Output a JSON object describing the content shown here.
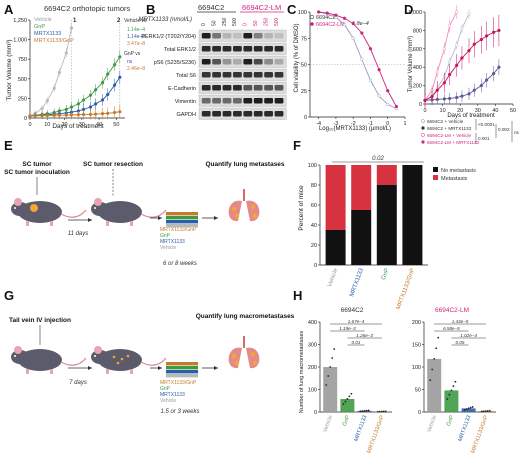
{
  "panel_letters": [
    "A",
    "B",
    "C",
    "D",
    "E",
    "F",
    "G",
    "H"
  ],
  "panel_a": {
    "title": "6694C2 orthotopic tumors",
    "ylabel": "Tumor Volume (mm³)",
    "xlabel": "Days of treatment",
    "legend": [
      "Vehicle",
      "GnP",
      "MRTX1133",
      "MRTX1133/GnP"
    ],
    "stats_head_1": "Vehicle vs",
    "stats_1": [
      "1.14e–4",
      "1.14e–8",
      "3.47e–8"
    ],
    "stats_head_2": "GnP vs",
    "stats_2": [
      "ns",
      "2.46e–8"
    ],
    "marker_1": "1",
    "marker_2": "2",
    "colors": {
      "vehicle": "#b9b9b9",
      "gnp": "#3f9a44",
      "mrtx": "#2a5ea8",
      "combo": "#c47a2c"
    }
  },
  "panel_b": {
    "cell_lines": [
      "6694C2",
      "6694C2-LM"
    ],
    "drug_label": "MRTX1133 (nmol/L)",
    "doses": [
      "0",
      "50",
      "250",
      "500",
      "0",
      "50",
      "250",
      "500"
    ],
    "rows": [
      "PERK1/2 (T202/Y204)",
      "Total ERK1/2",
      "pS6 (S235/S236)",
      "Total S6",
      "E-Cadherin",
      "Vimentin",
      "GAPDH"
    ]
  },
  "panel_c": {
    "legend": [
      "6694C2",
      "6694C2-LM"
    ],
    "pvalue": "1.8e–4",
    "ylabel": "Cell viability (% of DMSO)",
    "xlabel": "Log₁₀(MRTX1133) (μmol/L)"
  },
  "panel_d": {
    "ylabel": "Tumor Volume (mm³)",
    "xlabel": "Days of treatment",
    "legend": [
      "6694C2 + Vehicle",
      "6694C2 + MRTX1133",
      "6694C2-LM + Vehicle",
      "6694C2-LM + MRTX1133"
    ],
    "stats": [
      "<0.0001",
      "0.001",
      "0.002",
      "ns"
    ]
  },
  "panel_e": {
    "step1": "SC tumor inoculation",
    "step2": "SC tumor resection",
    "step3": "Quantify lung metastases",
    "interval": "11 days",
    "duration": "6 or 8 weeks",
    "treatments": [
      "MRTX1133/GnP",
      "GnP",
      "MRTX1133",
      "Vehicle"
    ]
  },
  "panel_f": {
    "ylabel": "Percent of mice",
    "legend": [
      "No metastasis",
      "Metastasis"
    ],
    "pvalue": "0.02",
    "categories": [
      "Vehicle",
      "MRTX1133",
      "GnP",
      "MRTX1133/GnP"
    ]
  },
  "panel_g": {
    "step1": "Tail vein IV injection",
    "step2": "Quantify lung macrometastases",
    "interval": "7 days",
    "duration": "1.5 or 3 weeks",
    "treatments": [
      "MRTX1133/GnP",
      "GnP",
      "MRTX1133",
      "Vehicle"
    ]
  },
  "panel_h": {
    "ylabel": "Number of lung macrometastases",
    "left": {
      "title": "6694C2",
      "pvalues": [
        "1.67e–4",
        "1.19e–3",
        "1.26e–3",
        "0.01"
      ]
    },
    "right": {
      "title": "6694C2-LM",
      "pvalues": [
        "1.43e–5",
        "6.58e–5",
        "1.02e–4",
        "0.05"
      ]
    },
    "categories": [
      "Vehicle",
      "GnP",
      "MRTX1133",
      "MRTX1133/GnP"
    ]
  },
  "chart_data": [
    {
      "type": "line",
      "panel": "A",
      "title": "6694C2 orthotopic tumors",
      "xlabel": "Days of treatment",
      "ylabel": "Tumor Volume (mm³)",
      "xlim": [
        0,
        55
      ],
      "ylim": [
        0,
        1250
      ],
      "x_ticks": [
        0,
        10,
        20,
        30,
        40,
        50
      ],
      "y_ticks": [
        0,
        250,
        500,
        750,
        1000,
        1250
      ],
      "series": [
        {
          "name": "Vehicle",
          "x": [
            0,
            3,
            7,
            10,
            14,
            17,
            21,
            24
          ],
          "values": [
            30,
            60,
            120,
            220,
            380,
            580,
            830,
            1150
          ]
        },
        {
          "name": "GnP",
          "x": [
            0,
            3,
            7,
            10,
            14,
            17,
            21,
            24,
            28,
            31,
            35,
            38,
            42,
            45,
            49,
            52
          ],
          "values": [
            25,
            35,
            45,
            55,
            70,
            90,
            110,
            140,
            180,
            230,
            290,
            360,
            450,
            560,
            680,
            780
          ]
        },
        {
          "name": "MRTX1133",
          "x": [
            0,
            3,
            7,
            10,
            14,
            17,
            21,
            24,
            28,
            31,
            35,
            38,
            42,
            45,
            49,
            52
          ],
          "values": [
            25,
            30,
            35,
            40,
            48,
            55,
            65,
            75,
            90,
            110,
            140,
            180,
            230,
            300,
            420,
            520
          ]
        },
        {
          "name": "MRTX1133/GnP",
          "x": [
            0,
            3,
            7,
            10,
            14,
            17,
            21,
            24,
            28,
            31,
            35,
            38,
            42,
            45,
            49,
            52
          ],
          "values": [
            25,
            28,
            30,
            32,
            34,
            36,
            38,
            40,
            42,
            44,
            46,
            50,
            55,
            60,
            70,
            80
          ]
        }
      ]
    },
    {
      "type": "line",
      "panel": "C",
      "xlabel": "Log₁₀(MRTX1133) (μmol/L)",
      "ylabel": "Cell viability (% of DMSO)",
      "xlim": [
        -4.5,
        1
      ],
      "ylim": [
        0,
        100
      ],
      "x_ticks": [
        -4,
        -3,
        -2,
        -1,
        0,
        1
      ],
      "y_ticks": [
        0,
        25,
        50,
        75,
        100
      ],
      "series": [
        {
          "name": "6694C2",
          "x": [
            -4,
            -3.5,
            -3,
            -2.5,
            -2,
            -1.5,
            -1,
            -0.5,
            0,
            0.5
          ],
          "values": [
            100,
            98,
            95,
            88,
            75,
            55,
            35,
            20,
            12,
            8
          ]
        },
        {
          "name": "6694C2-LM",
          "x": [
            -4,
            -3.5,
            -3,
            -2.5,
            -2,
            -1.5,
            -1,
            -0.5,
            0,
            0.5
          ],
          "values": [
            100,
            99,
            97,
            94,
            89,
            80,
            65,
            45,
            25,
            10
          ]
        }
      ]
    },
    {
      "type": "line",
      "panel": "D",
      "xlabel": "Days of treatment",
      "ylabel": "Tumor Volume (mm³)",
      "xlim": [
        0,
        50
      ],
      "ylim": [
        0,
        1000
      ],
      "x_ticks": [
        0,
        10,
        20,
        30,
        40,
        50
      ],
      "y_ticks": [
        0,
        200,
        400,
        600,
        800,
        1000
      ],
      "series": [
        {
          "name": "6694C2 + Vehicle",
          "x": [
            0,
            4,
            7,
            11,
            14,
            18,
            21,
            25
          ],
          "values": [
            40,
            90,
            170,
            300,
            460,
            640,
            820,
            980
          ]
        },
        {
          "name": "6694C2 + MRTX1133",
          "x": [
            0,
            4,
            7,
            11,
            14,
            18,
            21,
            25,
            28,
            32,
            35,
            39,
            42
          ],
          "values": [
            40,
            45,
            50,
            55,
            60,
            70,
            85,
            110,
            150,
            200,
            260,
            330,
            400
          ]
        },
        {
          "name": "6694C2-LM + Vehicle",
          "x": [
            0,
            4,
            7,
            11,
            14,
            18
          ],
          "values": [
            40,
            150,
            350,
            600,
            850,
            1000
          ]
        },
        {
          "name": "6694C2-LM + MRTX1133",
          "x": [
            0,
            4,
            7,
            11,
            14,
            18,
            21,
            25,
            28,
            32,
            35,
            39,
            42
          ],
          "values": [
            40,
            80,
            150,
            230,
            320,
            420,
            500,
            580,
            650,
            700,
            740,
            780,
            800
          ]
        }
      ]
    },
    {
      "type": "bar",
      "panel": "F",
      "ylabel": "Percent of mice",
      "categories": [
        "Vehicle",
        "MRTX1133",
        "GnP",
        "MRTX1133/GnP"
      ],
      "ylim": [
        0,
        100
      ],
      "y_ticks": [
        0,
        20,
        40,
        60,
        80,
        100
      ],
      "series": [
        {
          "name": "No metastasis",
          "values": [
            35,
            55,
            80,
            100
          ]
        },
        {
          "name": "Metastasis",
          "values": [
            65,
            45,
            20,
            0
          ]
        }
      ]
    },
    {
      "type": "bar",
      "panel": "H",
      "title": "6694C2",
      "ylabel": "Number of lung macrometastases",
      "categories": [
        "Vehicle",
        "GnP",
        "MRTX1133",
        "MRTX1133/GnP"
      ],
      "ylim": [
        0,
        400
      ],
      "y_ticks": [
        0,
        100,
        200,
        300,
        400
      ],
      "values": [
        200,
        58,
        5,
        2
      ]
    },
    {
      "type": "bar",
      "panel": "H",
      "title": "6694C2-LM",
      "categories": [
        "Vehicle",
        "GnP",
        "MRTX1133",
        "MRTX1133/GnP"
      ],
      "ylim": [
        0,
        200
      ],
      "y_ticks": [
        0,
        50,
        100,
        150,
        200
      ],
      "values": [
        118,
        48,
        8,
        2
      ]
    }
  ]
}
